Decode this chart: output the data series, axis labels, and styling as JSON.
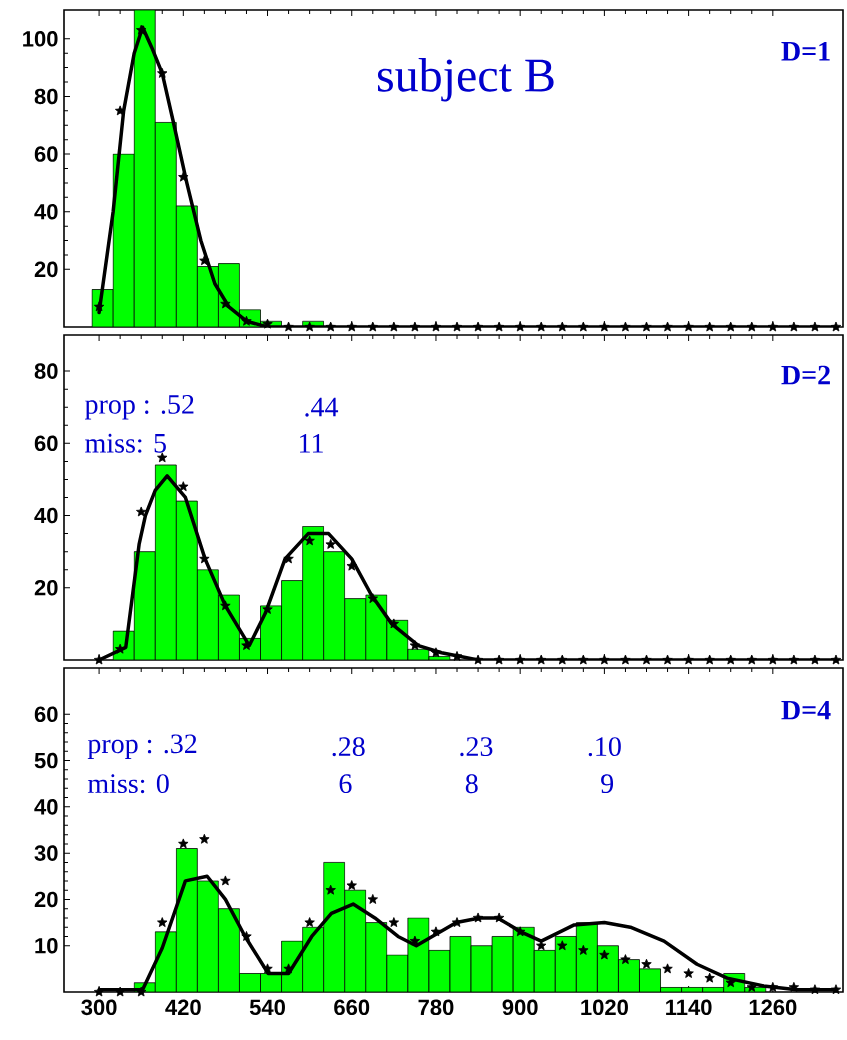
{
  "chart_data": [
    {
      "type": "histogram",
      "title": "subject B",
      "annotations": [
        "D=1"
      ],
      "bins": [
        290,
        320,
        350,
        380,
        410,
        440,
        470,
        500,
        530,
        560,
        590,
        620
      ],
      "values": [
        13,
        60,
        110,
        71,
        42,
        21,
        22,
        6,
        2,
        0,
        2
      ],
      "color": "#00ff00",
      "series": [
        {
          "type": "line",
          "color": "#000000",
          "x": [
            300,
            320,
            335,
            350,
            362,
            375,
            390,
            405,
            425,
            445,
            465,
            485,
            510,
            540,
            1350
          ],
          "values": [
            5,
            40,
            75,
            95,
            104,
            97,
            88,
            72,
            50,
            30,
            15,
            7,
            2,
            0,
            0
          ]
        },
        {
          "type": "scatter",
          "color": "#000000",
          "marker": "star",
          "x": [
            300,
            330,
            360,
            390,
            420,
            450,
            480,
            510,
            540,
            570,
            600,
            630,
            660,
            690,
            720,
            750,
            780,
            810,
            840,
            870,
            900,
            930,
            960,
            990,
            1020,
            1050,
            1080,
            1110,
            1140,
            1170,
            1200,
            1230,
            1260,
            1290,
            1320,
            1350
          ],
          "values": [
            7,
            75,
            103,
            88,
            52,
            23,
            8,
            2,
            1,
            0,
            0,
            0,
            0,
            0,
            0,
            0,
            0,
            0,
            0,
            0,
            0,
            0,
            0,
            0,
            0,
            0,
            0,
            0,
            0,
            0,
            0,
            0,
            0,
            0,
            0,
            0
          ]
        }
      ],
      "xlim": [
        250,
        1360
      ],
      "ylim": [
        0,
        110
      ],
      "xticks": [
        300,
        420,
        540,
        660,
        780,
        900,
        1020,
        1140,
        1260
      ],
      "yticks": [
        20,
        40,
        60,
        80,
        100
      ],
      "tick_labels": "y"
    },
    {
      "type": "histogram",
      "annotations": [
        "D=2",
        "prop : .52",
        ".44",
        "miss: 5",
        "11"
      ],
      "bins": [
        320,
        350,
        380,
        410,
        440,
        470,
        500,
        530,
        560,
        590,
        620,
        650,
        680,
        710,
        740,
        770,
        800
      ],
      "values": [
        8,
        30,
        54,
        44,
        25,
        18,
        6,
        15,
        22,
        37,
        30,
        17,
        18,
        11,
        3,
        1
      ],
      "color": "#00ff00",
      "series": [
        {
          "type": "line",
          "color": "#000000",
          "x": [
            300,
            338,
            357,
            366,
            380,
            397,
            423,
            451,
            480,
            514,
            537,
            565,
            598,
            627,
            660,
            688,
            717,
            755,
            788,
            840,
            1350
          ],
          "values": [
            0,
            3.5,
            32,
            40,
            47,
            51,
            45,
            28,
            15,
            4,
            13,
            28,
            35,
            35,
            28,
            18,
            10,
            4,
            2,
            0,
            0
          ]
        },
        {
          "type": "scatter",
          "color": "#000000",
          "marker": "star",
          "x": [
            300,
            330,
            360,
            390,
            420,
            450,
            480,
            510,
            540,
            570,
            600,
            630,
            660,
            690,
            720,
            750,
            780,
            810,
            840,
            870,
            900,
            930,
            960,
            990,
            1020,
            1050,
            1080,
            1110,
            1140,
            1170,
            1200,
            1230,
            1260,
            1290,
            1320,
            1350
          ],
          "values": [
            0,
            3,
            41,
            56,
            48,
            28,
            15,
            4,
            14,
            28,
            33,
            32,
            26,
            17,
            10,
            4,
            2,
            1,
            0,
            0,
            0,
            0,
            0,
            0,
            0,
            0,
            0,
            0,
            0,
            0,
            0,
            0,
            0,
            0,
            0,
            0
          ]
        }
      ],
      "xlim": [
        250,
        1360
      ],
      "ylim": [
        0,
        90
      ],
      "xticks": [
        300,
        420,
        540,
        660,
        780,
        900,
        1020,
        1140,
        1260
      ],
      "yticks": [
        20,
        40,
        60,
        80
      ],
      "tick_labels": "y"
    },
    {
      "type": "histogram",
      "annotations": [
        "D=4",
        "prop : .32",
        ".28",
        ".23",
        ".10",
        "miss: 0",
        "6",
        "8",
        "9"
      ],
      "bins": [
        350,
        380,
        410,
        440,
        470,
        500,
        530,
        560,
        590,
        620,
        650,
        680,
        710,
        740,
        770,
        800,
        830,
        860,
        890,
        920,
        950,
        980,
        1010,
        1040,
        1070,
        1100,
        1130,
        1160,
        1190,
        1220,
        1250
      ],
      "values": [
        2,
        13,
        31,
        24,
        18,
        4,
        4,
        11,
        14,
        28,
        22,
        15,
        8,
        16,
        9,
        12,
        10,
        12,
        14,
        9,
        12,
        15,
        10,
        7,
        5,
        1,
        1,
        1,
        4,
        1
      ],
      "color": "#00ff00",
      "series": [
        {
          "type": "line",
          "color": "#000000",
          "x": [
            300,
            362,
            390,
            423,
            454,
            480,
            508,
            541,
            570,
            603,
            631,
            662,
            693,
            726,
            752,
            809,
            842,
            868,
            901,
            930,
            977,
            1020,
            1057,
            1105,
            1152,
            1195,
            1247,
            1294,
            1350
          ],
          "values": [
            0.5,
            0.5,
            9.5,
            24,
            25,
            20,
            12,
            4,
            4,
            12,
            17,
            19,
            16,
            12,
            10,
            15,
            16,
            16,
            13,
            11,
            14.5,
            15,
            14,
            11,
            6,
            3,
            1.3,
            0.5,
            0.5
          ]
        },
        {
          "type": "scatter",
          "color": "#000000",
          "marker": "star",
          "x": [
            300,
            330,
            360,
            390,
            420,
            450,
            480,
            510,
            540,
            570,
            600,
            630,
            660,
            690,
            720,
            750,
            780,
            810,
            840,
            870,
            900,
            930,
            960,
            990,
            1020,
            1050,
            1080,
            1110,
            1140,
            1170,
            1200,
            1230,
            1260,
            1290,
            1320,
            1350
          ],
          "values": [
            0,
            0,
            0,
            15,
            32,
            33,
            24,
            12,
            5,
            5,
            15,
            22,
            23,
            20,
            15,
            11,
            13,
            15,
            16,
            16,
            13,
            10,
            10,
            9,
            8,
            7,
            6,
            5,
            4,
            3,
            2,
            1,
            1,
            1,
            0.5,
            0.5
          ]
        }
      ],
      "xlim": [
        250,
        1360
      ],
      "ylim": [
        0,
        70
      ],
      "xticks": [
        300,
        420,
        540,
        660,
        780,
        900,
        1020,
        1140,
        1260
      ],
      "yticks": [
        10,
        20,
        30,
        40,
        50,
        60
      ]
    }
  ]
}
